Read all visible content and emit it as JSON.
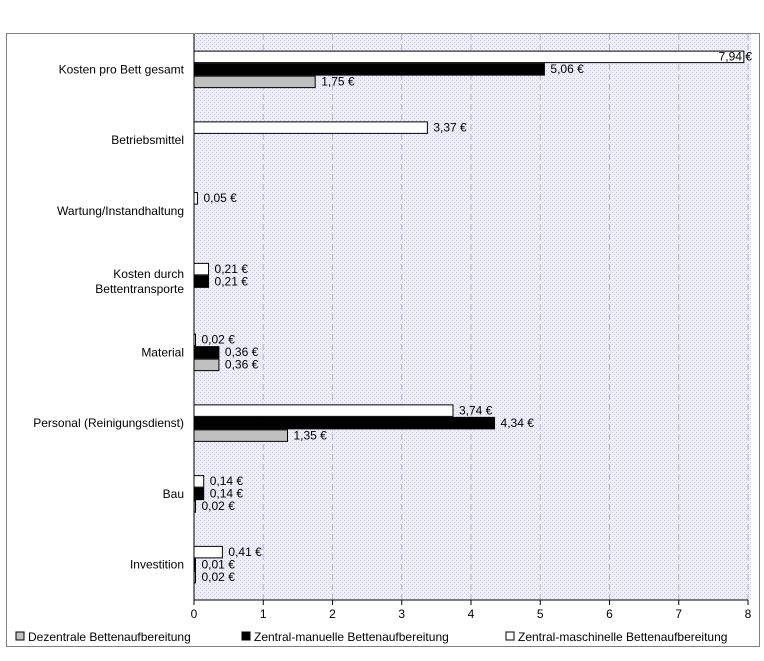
{
  "chart_data": {
    "type": "bar",
    "orientation": "horizontal",
    "categories": [
      "Kosten pro Bett gesamt",
      "Betriebsmittel",
      "Wartung/Instandhaltung",
      "Kosten durch Bettentransporte",
      "Material",
      "Personal (Reinigungsdienst)",
      "Bau",
      "Investition"
    ],
    "category_lines": [
      [
        "Kosten pro Bett gesamt"
      ],
      [
        "Betriebsmittel"
      ],
      [
        "Wartung/Instandhaltung"
      ],
      [
        "Kosten durch",
        "Bettentransporte"
      ],
      [
        "Material"
      ],
      [
        "Personal (Reinigungsdienst)"
      ],
      [
        "Bau"
      ],
      [
        "Investition"
      ]
    ],
    "series": [
      {
        "name": "Dezentrale Bettenaufbereitung",
        "color": "#c0c0c0",
        "values": [
          1.75,
          null,
          null,
          null,
          0.36,
          1.35,
          0.02,
          0.02
        ],
        "labels": [
          "1,75 €",
          "",
          "",
          "",
          "0,36 €",
          "1,35 €",
          "0,02 €",
          "0,02 €"
        ]
      },
      {
        "name": "Zentral-manuelle Bettenaufbereitung",
        "color": "#000000",
        "values": [
          5.06,
          null,
          null,
          0.21,
          0.36,
          4.34,
          0.14,
          0.01
        ],
        "labels": [
          "5,06 €",
          "",
          "",
          "0,21 €",
          "0,36 €",
          "4,34 €",
          "0,14 €",
          "0,01 €"
        ]
      },
      {
        "name": "Zentral-maschinelle Bettenaufbereitung",
        "color": "#ffffff",
        "values": [
          7.94,
          3.37,
          0.05,
          0.21,
          0.02,
          3.74,
          0.14,
          0.41
        ],
        "labels": [
          "7,94 €",
          "3,37 €",
          "0,05 €",
          "0,21 €",
          "0,02 €",
          "3,74 €",
          "0,14 €",
          "0,41 €"
        ]
      }
    ],
    "xlim": [
      0,
      8
    ],
    "x_ticks": [
      "0",
      "1",
      "2",
      "3",
      "4",
      "5",
      "6",
      "7",
      "8"
    ],
    "grid": true,
    "legend_position": "bottom"
  }
}
